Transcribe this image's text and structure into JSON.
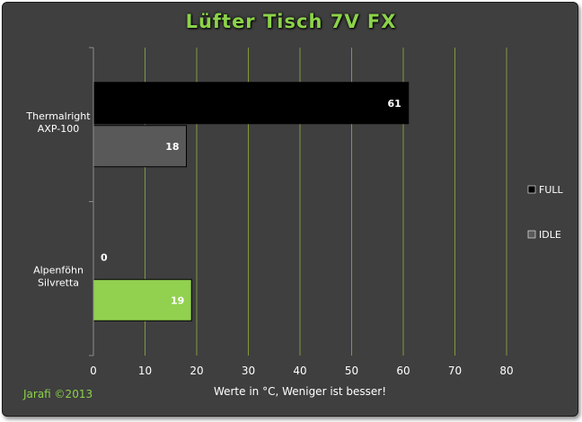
{
  "chart_data": {
    "type": "bar",
    "orientation": "horizontal",
    "title": "Lüfter Tisch 7V FX",
    "xlabel": "Werte in °C, Weniger ist besser!",
    "ylabel": "",
    "categories": [
      "Alpenföhn Silvretta",
      "Thermalright AXP-100"
    ],
    "category_lines": [
      [
        "Alpenföhn",
        "Silvretta"
      ],
      [
        "Thermalright",
        "AXP-100"
      ]
    ],
    "series": [
      {
        "name": "FULL",
        "values": [
          0,
          61
        ],
        "color": "#000000"
      },
      {
        "name": "IDLE",
        "values": [
          19,
          18
        ],
        "colors": [
          "#92d050",
          "#595959"
        ]
      }
    ],
    "xlim": [
      0,
      80
    ],
    "xticks": [
      0,
      10,
      20,
      30,
      40,
      50,
      60,
      70,
      80
    ],
    "grid": true,
    "legend_position": "right",
    "legend_swatch_colors": {
      "FULL": "#000000",
      "IDLE": "#595959"
    }
  },
  "footer": {
    "credit": "Jarafi  ©2013"
  }
}
